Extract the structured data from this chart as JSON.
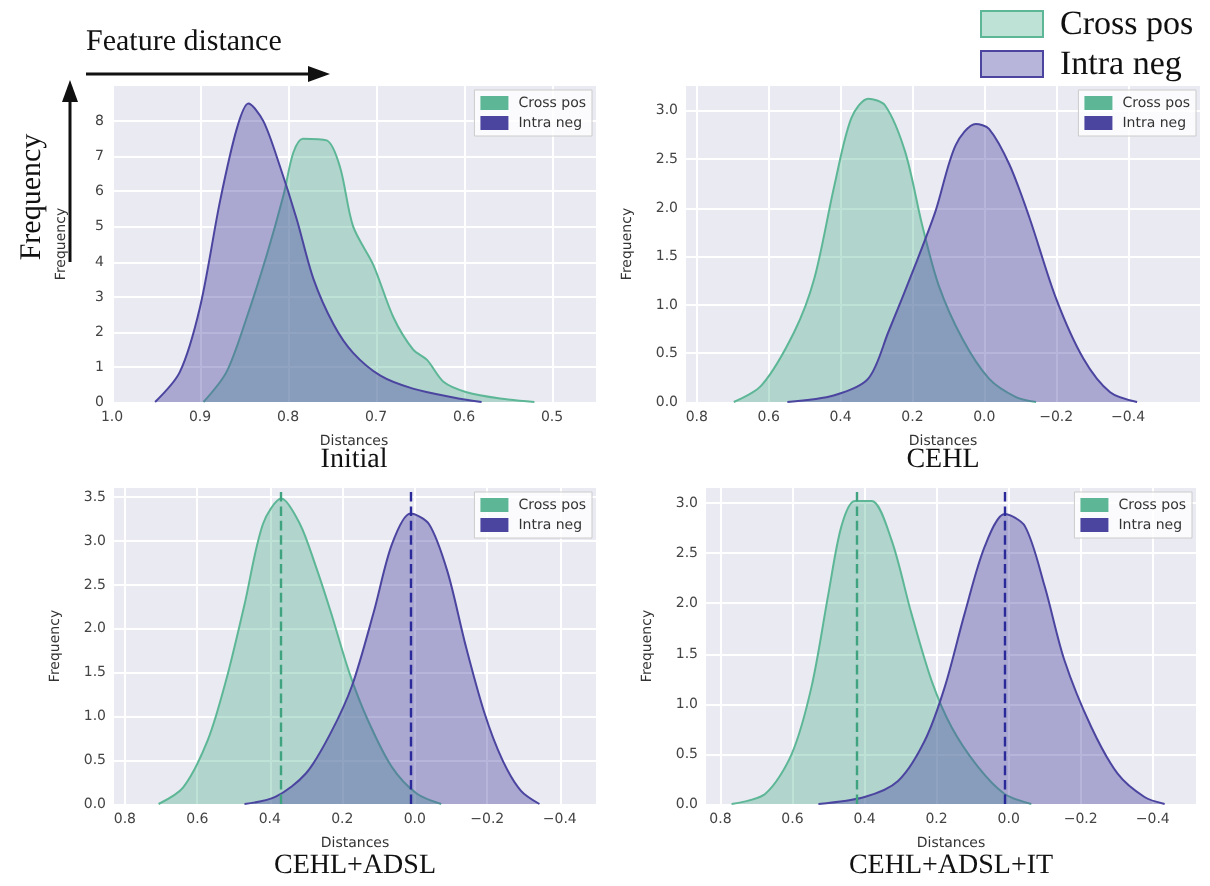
{
  "chart_data": [
    {
      "type": "area",
      "title": "Initial",
      "xlabel": "Distances",
      "ylabel": "Frequency",
      "annotations": [
        "Feature distance",
        "Frequency"
      ],
      "xlim": [
        1.0,
        0.45
      ],
      "ylim": [
        0,
        9
      ],
      "xticks": [
        {
          "value": 1,
          "label": "1.0"
        },
        0.9,
        0.8,
        0.7,
        0.6,
        0.5
      ],
      "yticks": [
        0,
        1,
        2,
        3,
        4,
        5,
        6,
        7,
        8
      ],
      "grid": true,
      "legend": "top right",
      "series": [
        {
          "name": "Cross pos",
          "color": "#5db796",
          "x": [
            0.896,
            0.87,
            0.847,
            0.824,
            0.805,
            0.794,
            0.783,
            0.756,
            0.741,
            0.726,
            0.703,
            0.68,
            0.658,
            0.642,
            0.623,
            0.597,
            0.559,
            0.52
          ],
          "values": [
            0,
            0.85,
            2.4,
            4.2,
            5.9,
            7.1,
            7.5,
            7.45,
            6.7,
            5.0,
            3.9,
            2.4,
            1.5,
            1.2,
            0.57,
            0.28,
            0.1,
            0
          ]
        },
        {
          "name": "Intra neg",
          "color": "#4b45a0",
          "x": [
            0.951,
            0.923,
            0.9,
            0.877,
            0.858,
            0.845,
            0.828,
            0.809,
            0.79,
            0.771,
            0.748,
            0.726,
            0.695,
            0.658,
            0.612,
            0.58
          ],
          "values": [
            0,
            0.85,
            2.7,
            5.75,
            7.8,
            8.5,
            8.0,
            6.7,
            5.2,
            3.5,
            2.2,
            1.4,
            0.75,
            0.38,
            0.13,
            0
          ]
        }
      ]
    },
    {
      "type": "area",
      "title": "CEHL",
      "xlabel": "Distances",
      "ylabel": "Frequency",
      "xlim": [
        0.83,
        -0.6
      ],
      "ylim": [
        0,
        3.25
      ],
      "xticks": [
        0.8,
        0.6,
        0.4,
        0.2,
        {
          "value": 0,
          "label": "0.0"
        },
        {
          "value": -0.2,
          "label": "−0.2"
        },
        {
          "value": -0.4,
          "label": "−0.4"
        }
      ],
      "yticks": [
        {
          "value": 0,
          "label": "0.0"
        },
        0.5,
        {
          "value": 1,
          "label": "1.0"
        },
        1.5,
        {
          "value": 2,
          "label": "2.0"
        },
        2.5,
        {
          "value": 3,
          "label": "3.0"
        }
      ],
      "grid": true,
      "legend": "top right",
      "series": [
        {
          "name": "Cross pos",
          "color": "#5db796",
          "x": [
            0.697,
            0.62,
            0.529,
            0.473,
            0.417,
            0.37,
            0.323,
            0.276,
            0.22,
            0.173,
            0.127,
            0.061,
            -0.013,
            -0.088,
            -0.144
          ],
          "values": [
            0,
            0.17,
            0.72,
            1.27,
            2.23,
            2.92,
            3.12,
            3.05,
            2.57,
            1.82,
            1.2,
            0.65,
            0.24,
            0.05,
            0
          ]
        },
        {
          "name": "Intra neg",
          "color": "#4b45a0",
          "x": [
            0.548,
            0.417,
            0.323,
            0.267,
            0.192,
            0.136,
            0.08,
            0.024,
            -0.013,
            -0.07,
            -0.126,
            -0.2,
            -0.275,
            -0.35,
            -0.425
          ],
          "values": [
            0,
            0.07,
            0.24,
            0.72,
            1.41,
            1.96,
            2.64,
            2.86,
            2.81,
            2.44,
            1.89,
            1.06,
            0.45,
            0.1,
            0
          ]
        }
      ]
    },
    {
      "type": "area",
      "title": "CEHL+ADSL",
      "xlabel": "Distances",
      "ylabel": "Frequency",
      "xlim": [
        0.83,
        -0.5
      ],
      "ylim": [
        0,
        3.6
      ],
      "xticks": [
        0.8,
        0.6,
        0.4,
        0.2,
        {
          "value": 0,
          "label": "0.0"
        },
        {
          "value": -0.2,
          "label": "−0.2"
        },
        {
          "value": -0.4,
          "label": "−0.4"
        }
      ],
      "yticks": [
        {
          "value": 0,
          "label": "0.0"
        },
        0.5,
        {
          "value": 1,
          "label": "1.0"
        },
        1.5,
        {
          "value": 2,
          "label": "2.0"
        },
        2.5,
        {
          "value": 3,
          "label": "3.0"
        },
        3.5
      ],
      "grid": true,
      "legend": "top right",
      "ref_lines": [
        {
          "axis": "x",
          "value": 0.37,
          "color": "#3fa37f",
          "line_style": "dashed"
        },
        {
          "axis": "x",
          "value": 0.01,
          "color": "#2a2a9a",
          "line_style": "dashed"
        }
      ],
      "series": [
        {
          "name": "Cross pos",
          "color": "#5db796",
          "x": [
            0.707,
            0.639,
            0.571,
            0.52,
            0.47,
            0.419,
            0.368,
            0.317,
            0.275,
            0.232,
            0.181,
            0.13,
            0.063,
            -0.005,
            -0.073
          ],
          "values": [
            0,
            0.19,
            0.73,
            1.42,
            2.27,
            3.19,
            3.48,
            3.19,
            2.73,
            2.19,
            1.5,
            0.96,
            0.42,
            0.12,
            0
          ]
        },
        {
          "name": "Intra neg",
          "color": "#4b45a0",
          "x": [
            0.47,
            0.385,
            0.3,
            0.232,
            0.173,
            0.113,
            0.063,
            0.012,
            -0.039,
            -0.09,
            -0.14,
            -0.192,
            -0.242,
            -0.293,
            -0.344
          ],
          "values": [
            0,
            0.08,
            0.35,
            0.81,
            1.35,
            2.19,
            2.96,
            3.31,
            3.19,
            2.65,
            1.81,
            1.04,
            0.5,
            0.15,
            0
          ]
        }
      ]
    },
    {
      "type": "area",
      "title": "CEHL+ADSL+IT",
      "xlabel": "Distances",
      "ylabel": "Frequency",
      "xlim": [
        0.84,
        -0.52
      ],
      "ylim": [
        0,
        3.15
      ],
      "xticks": [
        0.8,
        0.6,
        0.4,
        0.2,
        {
          "value": 0,
          "label": "0.0"
        },
        {
          "value": -0.2,
          "label": "−0.2"
        },
        {
          "value": -0.4,
          "label": "−0.4"
        }
      ],
      "yticks": [
        {
          "value": 0,
          "label": "0.0"
        },
        0.5,
        {
          "value": 1,
          "label": "1.0"
        },
        1.5,
        {
          "value": 2,
          "label": "2.0"
        },
        2.5,
        {
          "value": 3,
          "label": "3.0"
        }
      ],
      "grid": true,
      "legend": "top right",
      "ref_lines": [
        {
          "axis": "x",
          "value": 0.417,
          "color": "#3fa37f",
          "line_style": "dashed"
        },
        {
          "axis": "x",
          "value": 0.005,
          "color": "#2a2a9a",
          "line_style": "dashed"
        }
      ],
      "series": [
        {
          "name": "Cross pos",
          "color": "#5db796",
          "x": [
            0.769,
            0.676,
            0.602,
            0.547,
            0.5,
            0.464,
            0.427,
            0.38,
            0.325,
            0.27,
            0.214,
            0.159,
            0.085,
            0.011,
            -0.063
          ],
          "values": [
            0,
            0.1,
            0.5,
            1.17,
            2.1,
            2.77,
            3.02,
            3.02,
            2.63,
            1.9,
            1.23,
            0.77,
            0.37,
            0.1,
            0
          ]
        },
        {
          "name": "Intra neg",
          "color": "#4b45a0",
          "x": [
            0.528,
            0.4,
            0.307,
            0.233,
            0.177,
            0.122,
            0.066,
            0.011,
            -0.045,
            -0.1,
            -0.155,
            -0.229,
            -0.303,
            -0.377,
            -0.433
          ],
          "values": [
            0,
            0.07,
            0.23,
            0.63,
            1.17,
            1.9,
            2.57,
            2.89,
            2.77,
            2.17,
            1.43,
            0.77,
            0.3,
            0.07,
            0
          ]
        }
      ]
    }
  ]
}
